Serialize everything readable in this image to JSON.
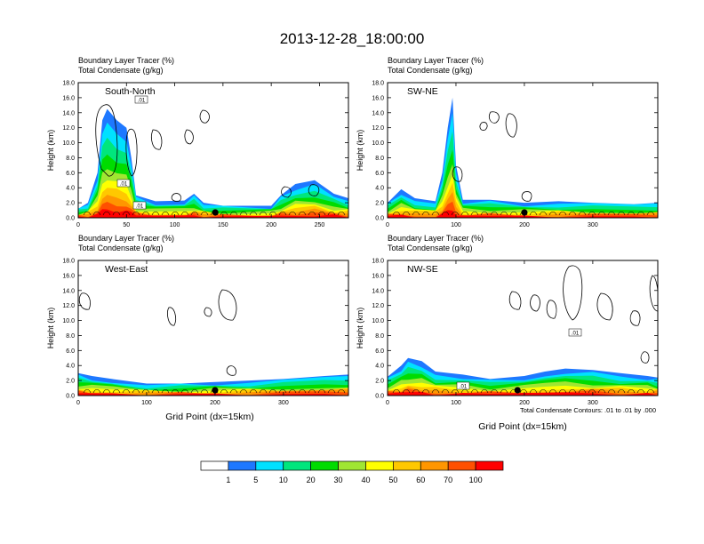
{
  "title": "2013-12-28_18:00:00",
  "chart_data": [
    {
      "type": "contour",
      "panel": "South-North",
      "header_line1": "Boundary Layer Tracer   (%)",
      "header_line2": "Total Condensate   (g/kg)",
      "ylabel": "Height (km)",
      "ylim": [
        0,
        18
      ],
      "yticks": [
        "0.0",
        "2.0",
        "4.0",
        "6.0",
        "8.0",
        "10.0",
        "12.0",
        "14.0",
        "16.0",
        "18.0"
      ],
      "xlim": [
        0,
        280
      ],
      "xticks": [
        0,
        50,
        100,
        150,
        200,
        250
      ],
      "marker_x": 142,
      "contour_labels": [
        ".01",
        ".01",
        ".01"
      ],
      "tracer_profile": [
        [
          0,
          1.2
        ],
        [
          10,
          2.0
        ],
        [
          20,
          6
        ],
        [
          25,
          13
        ],
        [
          30,
          14.5
        ],
        [
          40,
          13
        ],
        [
          50,
          12
        ],
        [
          55,
          8
        ],
        [
          60,
          3
        ],
        [
          80,
          2.2
        ],
        [
          110,
          2.3
        ],
        [
          120,
          3.2
        ],
        [
          130,
          2.0
        ],
        [
          150,
          1.6
        ],
        [
          200,
          1.6
        ],
        [
          210,
          3.0
        ],
        [
          225,
          4.5
        ],
        [
          245,
          5.0
        ],
        [
          265,
          3.2
        ],
        [
          280,
          2.6
        ]
      ]
    },
    {
      "type": "contour",
      "panel": "SW-NE",
      "header_line1": "Boundary Layer Tracer   (%)",
      "header_line2": "Total Condensate   (g/kg)",
      "ylabel": "Height (km)",
      "ylim": [
        0,
        18
      ],
      "yticks": [
        "0.0",
        "2.0",
        "4.0",
        "6.0",
        "8.0",
        "10.0",
        "12.0",
        "14.0",
        "16.0",
        "18.0"
      ],
      "xlim": [
        0,
        395
      ],
      "xticks": [
        0,
        100,
        200,
        300
      ],
      "marker_x": 200,
      "contour_labels": [],
      "tracer_profile": [
        [
          0,
          2.0
        ],
        [
          20,
          3.8
        ],
        [
          40,
          2.6
        ],
        [
          70,
          2.2
        ],
        [
          80,
          6
        ],
        [
          88,
          12
        ],
        [
          95,
          16
        ],
        [
          100,
          7
        ],
        [
          110,
          2.4
        ],
        [
          150,
          2.4
        ],
        [
          200,
          2.0
        ],
        [
          250,
          2.2
        ],
        [
          300,
          2.0
        ],
        [
          360,
          1.8
        ],
        [
          395,
          2.0
        ]
      ]
    },
    {
      "type": "contour",
      "panel": "West-East",
      "header_line1": "Boundary Layer Tracer   (%)",
      "header_line2": "Total Condensate   (g/kg)",
      "ylabel": "Height (km)",
      "ylim": [
        0,
        18
      ],
      "yticks": [
        "0.0",
        "2.0",
        "4.0",
        "6.0",
        "8.0",
        "10.0",
        "12.0",
        "14.0",
        "16.0",
        "18.0"
      ],
      "xlim": [
        0,
        395
      ],
      "xticks": [
        0,
        100,
        200,
        300
      ],
      "marker_x": 200,
      "contour_labels": [],
      "tracer_profile": [
        [
          0,
          3.0
        ],
        [
          20,
          2.6
        ],
        [
          50,
          2.2
        ],
        [
          100,
          1.6
        ],
        [
          150,
          1.6
        ],
        [
          200,
          1.8
        ],
        [
          250,
          2.0
        ],
        [
          300,
          2.2
        ],
        [
          360,
          2.6
        ],
        [
          395,
          2.8
        ]
      ]
    },
    {
      "type": "contour",
      "panel": "NW-SE",
      "header_line1": "Boundary Layer Tracer   (%)",
      "header_line2": "Total Condensate   (g/kg)",
      "ylabel": "Height (km)",
      "ylim": [
        0,
        18
      ],
      "yticks": [
        "0.0",
        "2.0",
        "4.0",
        "6.0",
        "8.0",
        "10.0",
        "12.0",
        "14.0",
        "16.0",
        "18.0"
      ],
      "xlim": [
        0,
        395
      ],
      "xticks": [
        0,
        100,
        200,
        300
      ],
      "marker_x": 190,
      "contour_labels": [
        ".01",
        ".01"
      ],
      "tracer_profile": [
        [
          0,
          2.5
        ],
        [
          20,
          4.0
        ],
        [
          30,
          5.0
        ],
        [
          50,
          4.6
        ],
        [
          70,
          3.2
        ],
        [
          110,
          2.8
        ],
        [
          150,
          2.2
        ],
        [
          200,
          2.6
        ],
        [
          230,
          3.2
        ],
        [
          260,
          3.6
        ],
        [
          300,
          3.4
        ],
        [
          340,
          3.0
        ],
        [
          380,
          2.6
        ],
        [
          395,
          2.4
        ]
      ]
    }
  ],
  "xlabel": "Grid Point (dx=15km)",
  "contour_info": "Total Condensate Contours: .01 to .01 by .000",
  "colorbar": {
    "levels": [
      "1",
      "5",
      "10",
      "20",
      "30",
      "40",
      "50",
      "60",
      "70",
      "100"
    ],
    "colors": [
      "#ffffff",
      "#1e78ff",
      "#00e1ff",
      "#00e67d",
      "#00dc00",
      "#a0e632",
      "#ffff00",
      "#ffc800",
      "#ff9600",
      "#ff5000",
      "#ff0000"
    ]
  }
}
